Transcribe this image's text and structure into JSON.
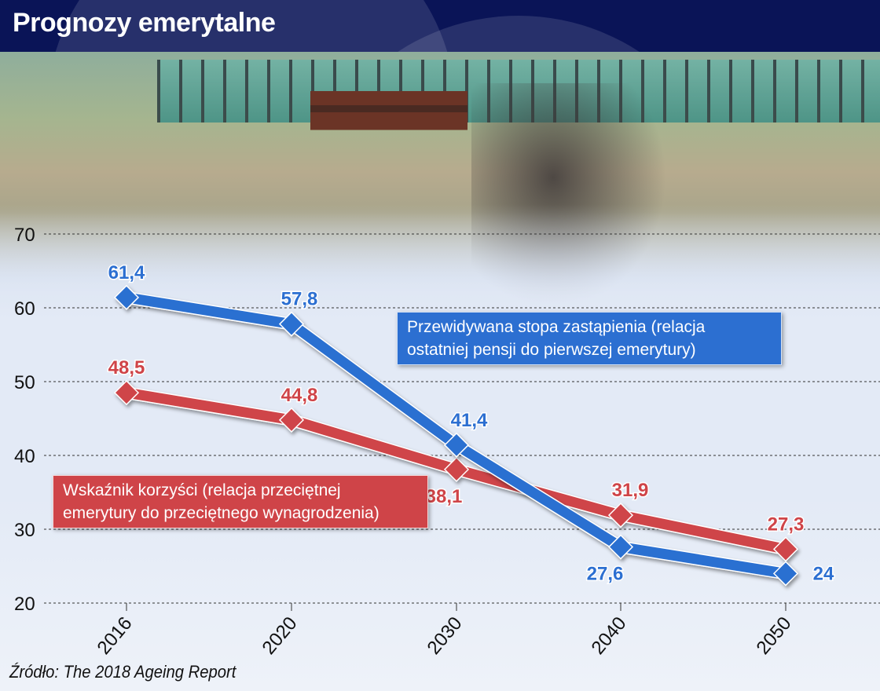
{
  "header": {
    "title": "Prognozy emerytalne"
  },
  "legend": {
    "blue": {
      "line1": "Przewidywana stopa zastąpienia (relacja",
      "line2": "ostatniej pensji do pierwszej emerytury)"
    },
    "red": {
      "line1": "Wskaźnik korzyści (relacja przeciętnej",
      "line2": "emerytury do przeciętnego wynagrodzenia)"
    }
  },
  "source": "Źródło: The 2018 Ageing Report",
  "colors": {
    "blue": "#2c6fd1",
    "red": "#cf4448",
    "header": "#0a1457"
  },
  "chart_data": {
    "type": "line",
    "title": "Prognozy emerytalne",
    "xlabel": "",
    "ylabel": "",
    "categories": [
      "2016",
      "2020",
      "2030",
      "2040",
      "2050"
    ],
    "yticks": [
      "20",
      "30",
      "40",
      "50",
      "60",
      "70"
    ],
    "ylim": [
      20,
      70
    ],
    "grid": true,
    "series": [
      {
        "name": "Przewidywana stopa zastąpienia (relacja ostatniej pensji do pierwszej emerytury)",
        "color": "#2c6fd1",
        "values": [
          61.4,
          57.8,
          41.4,
          27.6,
          24
        ],
        "labels": [
          "61,4",
          "57,8",
          "41,4",
          "27,6",
          "24"
        ]
      },
      {
        "name": "Wskaźnik korzyści (relacja przeciętnej emerytury do przeciętnego wynagrodzenia)",
        "color": "#cf4448",
        "values": [
          48.5,
          44.8,
          38.1,
          31.9,
          27.3
        ],
        "labels": [
          "48,5",
          "44,8",
          "38,1",
          "31,9",
          "27,3"
        ]
      }
    ],
    "source": "Źródło: The 2018 Ageing Report"
  }
}
